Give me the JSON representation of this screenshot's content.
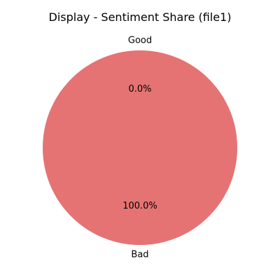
{
  "chart_data": {
    "type": "pie",
    "title": "Display - Sentiment Share (file1)",
    "slices": [
      {
        "label": "Good",
        "value": 0.0,
        "pct_label": "0.0%",
        "color": "#e57373"
      },
      {
        "label": "Bad",
        "value": 100.0,
        "pct_label": "100.0%",
        "color": "#e57373"
      }
    ]
  }
}
